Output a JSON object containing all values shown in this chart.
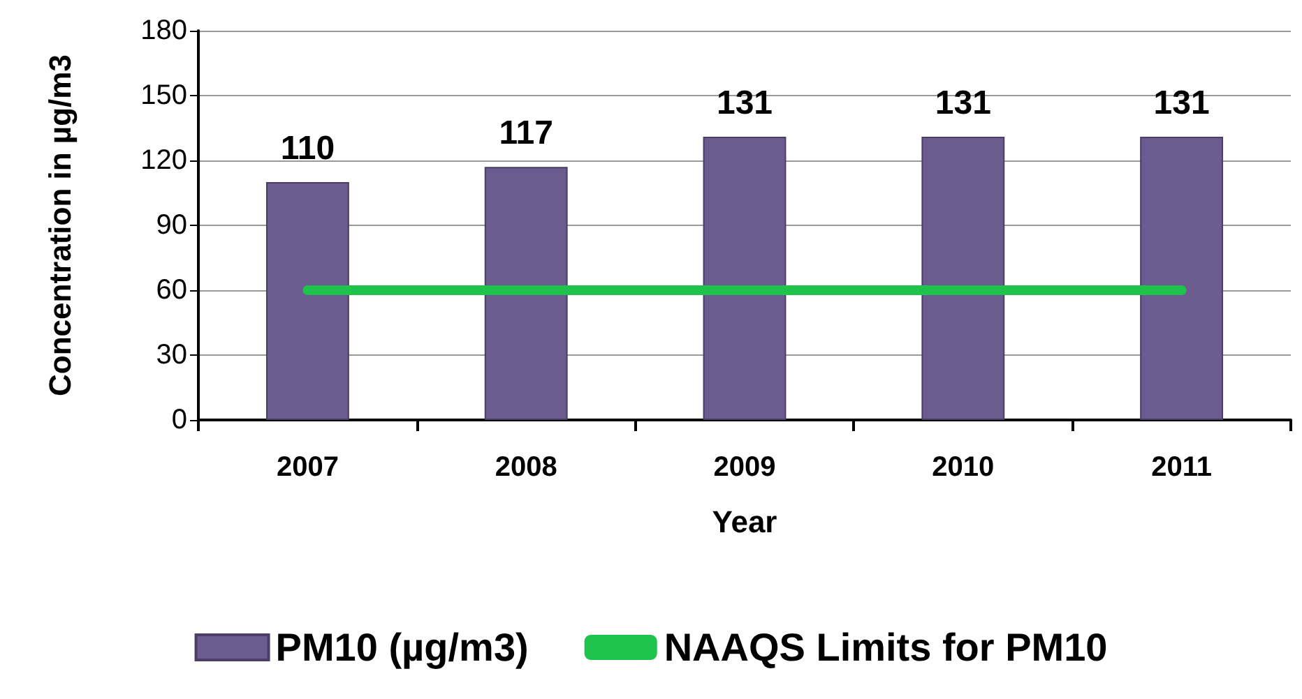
{
  "chart_data": {
    "type": "bar",
    "xlabel": "Year",
    "ylabel": "Concentration in µg/m3",
    "categories": [
      "2007",
      "2008",
      "2009",
      "2010",
      "2011"
    ],
    "series": [
      {
        "name": "PM10 (µg/m3)",
        "color": "#6b5b8e",
        "values": [
          110,
          117,
          131,
          131,
          131
        ],
        "value_labels": [
          "110",
          "117",
          "131",
          "131",
          "131"
        ]
      },
      {
        "name": "NAAQS Limits for PM10",
        "type": "line",
        "color": "#1ec34b",
        "values": [
          60,
          60,
          60,
          60,
          60
        ],
        "line_style": "solid"
      }
    ],
    "ylim": [
      0,
      180
    ],
    "yticks": [
      0,
      30,
      60,
      90,
      120,
      150,
      180
    ],
    "grid": "y",
    "legend": "bottom"
  }
}
